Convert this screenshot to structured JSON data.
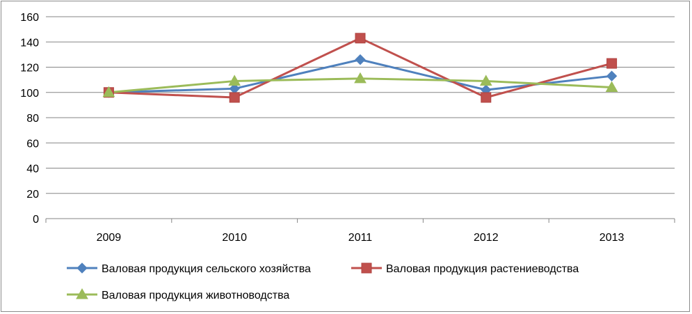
{
  "chart_data": {
    "type": "line",
    "categories": [
      "2009",
      "2010",
      "2011",
      "2012",
      "2013"
    ],
    "series": [
      {
        "name": "Валовая продукция сельского хозяйства",
        "values": [
          100,
          103,
          126,
          102,
          113
        ],
        "color": "#4f81bd",
        "marker": "diamond"
      },
      {
        "name": "Валовая продукция растениеводства",
        "values": [
          100,
          96,
          143,
          96,
          123
        ],
        "color": "#c0504d",
        "marker": "square"
      },
      {
        "name": "Валовая продукция животноводства",
        "values": [
          100,
          109,
          111,
          109,
          104
        ],
        "color": "#9bbb59",
        "marker": "triangle"
      }
    ],
    "ylim": [
      0,
      160
    ],
    "yticks": [
      "0",
      "20",
      "40",
      "60",
      "80",
      "100",
      "120",
      "140",
      "160"
    ],
    "grid": true,
    "legend": "bottom"
  }
}
